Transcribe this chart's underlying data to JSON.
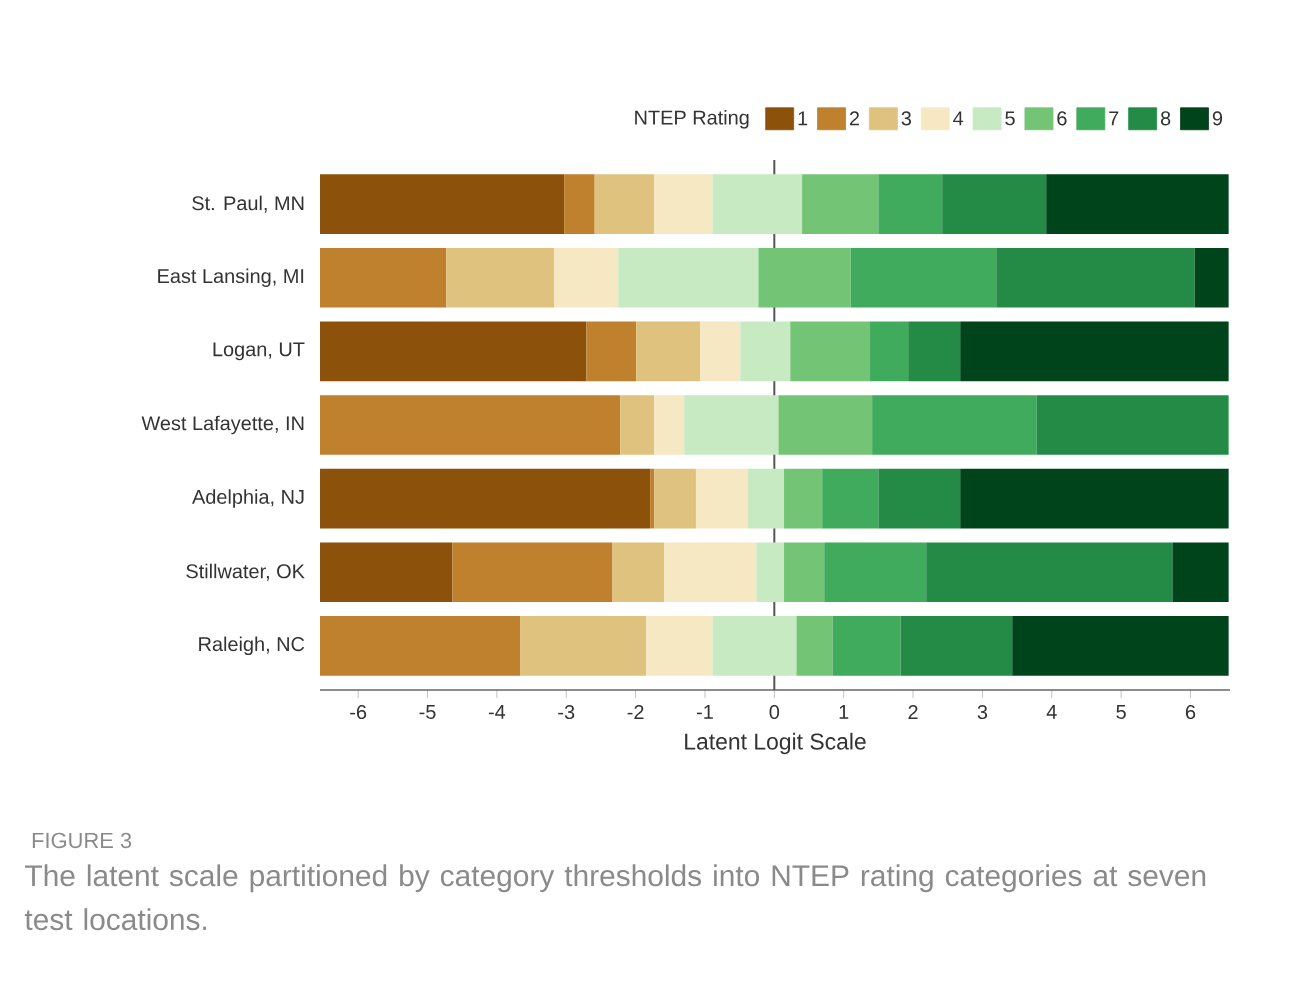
{
  "chart_data": {
    "type": "bar",
    "orientation": "horizontal",
    "xlabel": "Latent Logit Scale",
    "legend_title": "NTEP Rating",
    "legend": "top right",
    "categories": [
      "St. Paul, MN",
      "East Lansing, MI",
      "Logan, UT",
      "West Lafayette, IN",
      "Adelphia, NJ",
      "Stillwater, OK",
      "Raleigh, NC"
    ],
    "series": [
      {
        "name": "1",
        "color": "#8c510a",
        "base": [
          -6.55,
          null,
          -6.55,
          null,
          -6.55,
          -6.55,
          null
        ],
        "values": [
          3.52,
          null,
          3.84,
          null,
          4.76,
          1.91,
          null
        ]
      },
      {
        "name": "2",
        "color": "#bf812d",
        "base": [
          -3.03,
          -6.55,
          -2.71,
          -6.55,
          -1.79,
          -4.64,
          -6.55
        ],
        "values": [
          0.44,
          1.82,
          0.72,
          4.33,
          0.06,
          2.3,
          2.89
        ]
      },
      {
        "name": "3",
        "color": "#dfc27d",
        "base": [
          -2.59,
          -4.73,
          -1.99,
          -2.22,
          -1.73,
          -2.34,
          -3.66
        ],
        "values": [
          0.86,
          1.56,
          0.92,
          0.49,
          0.6,
          0.75,
          1.81
        ]
      },
      {
        "name": "4",
        "color": "#f6e8c3",
        "base": [
          -1.73,
          -3.17,
          -1.07,
          -1.73,
          -1.13,
          -1.59,
          -1.85
        ],
        "values": [
          0.84,
          0.92,
          0.58,
          0.43,
          0.75,
          1.33,
          0.96
        ]
      },
      {
        "name": "5",
        "color": "#c7eac3",
        "base": [
          -0.89,
          -2.25,
          -0.49,
          -1.3,
          -0.38,
          -0.26,
          -0.89
        ],
        "values": [
          1.29,
          2.02,
          0.72,
          1.36,
          0.52,
          0.4,
          1.21
        ]
      },
      {
        "name": "6",
        "color": "#74c476",
        "base": [
          0.4,
          -0.23,
          0.23,
          0.06,
          0.14,
          0.14,
          0.32
        ],
        "values": [
          1.1,
          1.33,
          1.15,
          1.35,
          0.55,
          0.58,
          0.52
        ]
      },
      {
        "name": "7",
        "color": "#41ab5d",
        "base": [
          1.5,
          1.1,
          1.38,
          1.41,
          0.69,
          0.72,
          0.84
        ],
        "values": [
          0.92,
          2.1,
          0.55,
          2.37,
          0.81,
          1.47,
          0.98
        ]
      },
      {
        "name": "8",
        "color": "#238b45",
        "base": [
          2.42,
          3.2,
          1.93,
          3.78,
          1.5,
          2.19,
          1.82
        ],
        "values": [
          1.5,
          2.86,
          0.75,
          2.77,
          1.18,
          3.55,
          1.61
        ]
      },
      {
        "name": "9",
        "color": "#00441b",
        "base": [
          3.92,
          6.06,
          2.68,
          null,
          2.68,
          5.74,
          3.43
        ],
        "values": [
          2.63,
          0.49,
          3.87,
          null,
          3.87,
          0.81,
          3.12
        ]
      }
    ],
    "xlim": [
      -6.55,
      6.57
    ],
    "xticks": [
      -6,
      -5,
      -4,
      -3,
      -2,
      -1,
      0,
      1,
      2,
      3,
      4,
      5,
      6
    ],
    "ref_lines": [
      {
        "axis": "x",
        "value": 0,
        "color": "#555555"
      }
    ],
    "annotations": [
      "FIGURE 3",
      "The latent scale partitioned by category thresholds into NTEP rating categories at seven test locations."
    ]
  }
}
